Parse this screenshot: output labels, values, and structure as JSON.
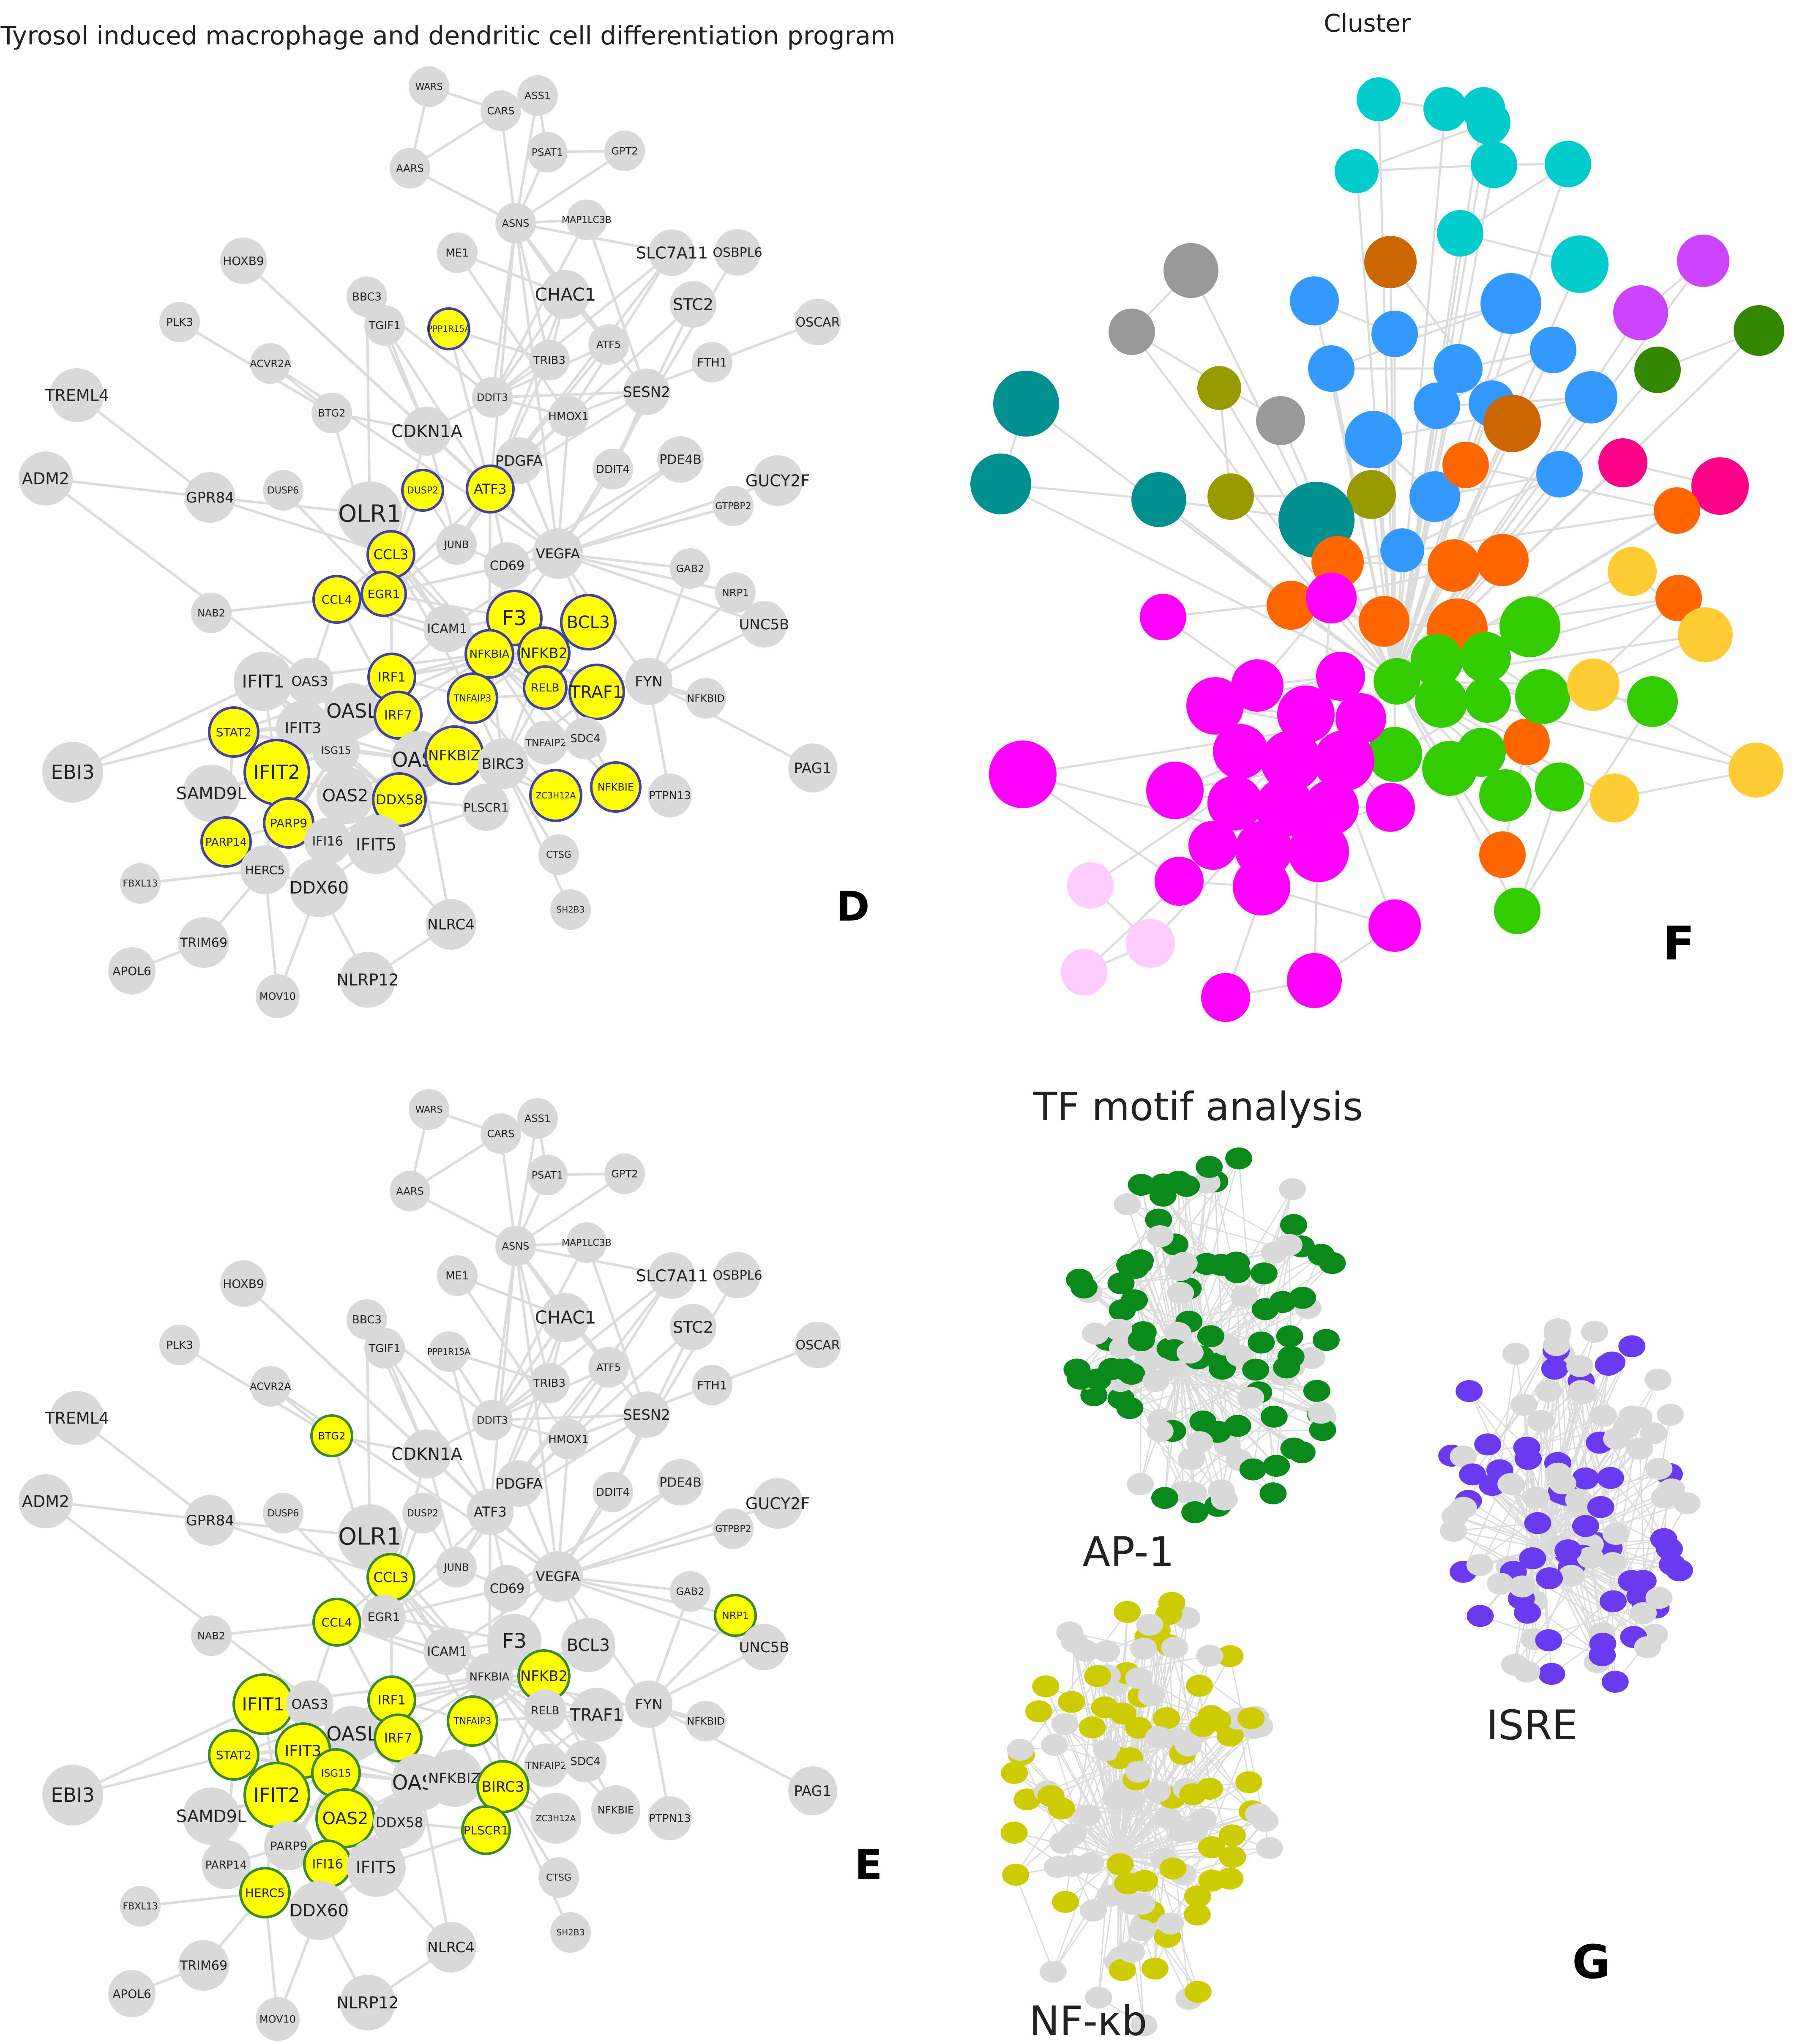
{
  "panels": {
    "D": {
      "title": "Tyrosol induced macrophage and dendritic cell differentiation program",
      "letter": "D"
    },
    "E": {
      "letter": "E"
    },
    "F": {
      "title": "Cluster",
      "letter": "F"
    },
    "G": {
      "title": "TF motif analysis",
      "letter": "G",
      "subnets": [
        "AP-1",
        "ISRE",
        "NF-κb"
      ]
    }
  },
  "network": {
    "nodes": [
      {
        "id": "WARS"
      },
      {
        "id": "CARS"
      },
      {
        "id": "ASS1"
      },
      {
        "id": "PSAT1"
      },
      {
        "id": "GPT2"
      },
      {
        "id": "AARS"
      },
      {
        "id": "ASNS"
      },
      {
        "id": "MAP1LC3B"
      },
      {
        "id": "ME1"
      },
      {
        "id": "SLC7A11"
      },
      {
        "id": "OSBPL6"
      },
      {
        "id": "HOXB9"
      },
      {
        "id": "BBC3"
      },
      {
        "id": "CHAC1"
      },
      {
        "id": "STC2"
      },
      {
        "id": "OSCAR"
      },
      {
        "id": "PLK3"
      },
      {
        "id": "PPP1R15A"
      },
      {
        "id": "TGIF1"
      },
      {
        "id": "TRIB3"
      },
      {
        "id": "ATF5"
      },
      {
        "id": "FTH1"
      },
      {
        "id": "ACVR2A"
      },
      {
        "id": "BTG2"
      },
      {
        "id": "DDIT3"
      },
      {
        "id": "HMOX1"
      },
      {
        "id": "SESN2"
      },
      {
        "id": "TREML4"
      },
      {
        "id": "CDKN1A"
      },
      {
        "id": "PDGFA"
      },
      {
        "id": "DDIT4"
      },
      {
        "id": "PDE4B"
      },
      {
        "id": "GUCY2F"
      },
      {
        "id": "ADM2"
      },
      {
        "id": "GPR84"
      },
      {
        "id": "DUSP6"
      },
      {
        "id": "DUSP2"
      },
      {
        "id": "ATF3"
      },
      {
        "id": "GTPBP2"
      },
      {
        "id": "OLR1"
      },
      {
        "id": "JUNB"
      },
      {
        "id": "CCL3"
      },
      {
        "id": "VEGFA"
      },
      {
        "id": "CD69"
      },
      {
        "id": "GAB2"
      },
      {
        "id": "CCL4"
      },
      {
        "id": "EGR1"
      },
      {
        "id": "NAB2"
      },
      {
        "id": "NRP1"
      },
      {
        "id": "UNC5B"
      },
      {
        "id": "ICAM1"
      },
      {
        "id": "F3"
      },
      {
        "id": "BCL3"
      },
      {
        "id": "IFIT1"
      },
      {
        "id": "NFKBIA"
      },
      {
        "id": "NFKB2"
      },
      {
        "id": "TRAF1"
      },
      {
        "id": "FYN"
      },
      {
        "id": "OAS3"
      },
      {
        "id": "IRF1"
      },
      {
        "id": "RELB"
      },
      {
        "id": "NFKBID"
      },
      {
        "id": "OASL"
      },
      {
        "id": "IRF7"
      },
      {
        "id": "TNFAIP3"
      },
      {
        "id": "STAT2"
      },
      {
        "id": "IFIT3"
      },
      {
        "id": "TNFAIP2"
      },
      {
        "id": "SDC4"
      },
      {
        "id": "EBI3"
      },
      {
        "id": "ISG15"
      },
      {
        "id": "OAS1"
      },
      {
        "id": "NFKBIZ"
      },
      {
        "id": "BIRC3"
      },
      {
        "id": "PAG1"
      },
      {
        "id": "IFIT2"
      },
      {
        "id": "SAMD9L"
      },
      {
        "id": "OAS2"
      },
      {
        "id": "DDX58"
      },
      {
        "id": "ZC3H12A"
      },
      {
        "id": "NFKBIE"
      },
      {
        "id": "PTPN13"
      },
      {
        "id": "PARP9"
      },
      {
        "id": "PLSCR1"
      },
      {
        "id": "PARP14"
      },
      {
        "id": "IFI16"
      },
      {
        "id": "IFIT5"
      },
      {
        "id": "CTSG"
      },
      {
        "id": "HERC5"
      },
      {
        "id": "FBXL13"
      },
      {
        "id": "DDX60"
      },
      {
        "id": "SH2B3"
      },
      {
        "id": "NLRC4"
      },
      {
        "id": "TRIM69"
      },
      {
        "id": "APOL6"
      },
      {
        "id": "NLRP12"
      },
      {
        "id": "MOV10"
      }
    ],
    "highlight_D": [
      "PPP1R15A",
      "DUSP2",
      "ATF3",
      "CCL3",
      "CCL4",
      "EGR1",
      "F3",
      "BCL3",
      "NFKBIA",
      "NFKB2",
      "IRF1",
      "TNFAIP3",
      "RELB",
      "TRAF1",
      "IRF7",
      "STAT2",
      "NFKBIZ",
      "IFIT2",
      "DDX58",
      "ZC3H12A",
      "NFKBIE",
      "PARP9",
      "PARP14"
    ],
    "highlight_E": [
      "BTG2",
      "CCL3",
      "CCL4",
      "NRP1",
      "IFIT1",
      "NFKB2",
      "IRF1",
      "TNFAIP3",
      "IRF7",
      "STAT2",
      "IFIT3",
      "ISG15",
      "IFIT2",
      "OAS2",
      "BIRC3",
      "PLSCR1",
      "IFI16",
      "HERC5"
    ]
  },
  "colors": {
    "background": "#ffffff",
    "node_gray": "#d9d9d9",
    "edge_gray": "#dcdcdc",
    "highlight_fill": "#ffff00",
    "ring_D": "#3f3fb0",
    "ring_E": "#3a8a2a",
    "ap1": "#0a8a1a",
    "isre": "#6a3af0",
    "nfkb": "#cccc00",
    "cluster_palette": [
      "#00cccc",
      "#3399ff",
      "#ff00ff",
      "#33cc00",
      "#ff6600",
      "#ffcc33",
      "#009090",
      "#999999",
      "#999900",
      "#cc6600",
      "#cc44ff",
      "#ff0088",
      "#338800",
      "#ffccff"
    ]
  }
}
